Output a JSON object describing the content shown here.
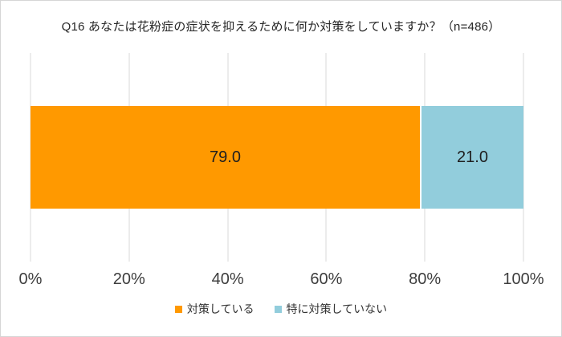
{
  "title": "Q16 あなたは花粉症の症状を抑えるために何か対策をしていますか？（n=486）",
  "chart_data": {
    "type": "bar",
    "orientation": "horizontal",
    "stacked": true,
    "title": "Q16 あなたは花粉症の症状を抑えるために何か対策をしていますか？（n=486）",
    "n": 486,
    "categories": [
      ""
    ],
    "series": [
      {
        "name": "対策している",
        "values": [
          79.0
        ],
        "display_label": "79.0",
        "color": "#ff9900"
      },
      {
        "name": "特に対策していない",
        "values": [
          21.0
        ],
        "display_label": "21.0",
        "color": "#92cdDC"
      }
    ],
    "xlim": [
      0,
      100
    ],
    "x_tick_labels": [
      "0%",
      "20%",
      "40%",
      "60%",
      "80%",
      "100%"
    ],
    "grid": "vertical",
    "gridline_color": "#d9d9d9",
    "legend_position": "bottom"
  },
  "legend": {
    "items": [
      {
        "label": "対策している",
        "color": "#ff9900"
      },
      {
        "label": "特に対策していない",
        "color": "#92cdDC"
      }
    ]
  }
}
